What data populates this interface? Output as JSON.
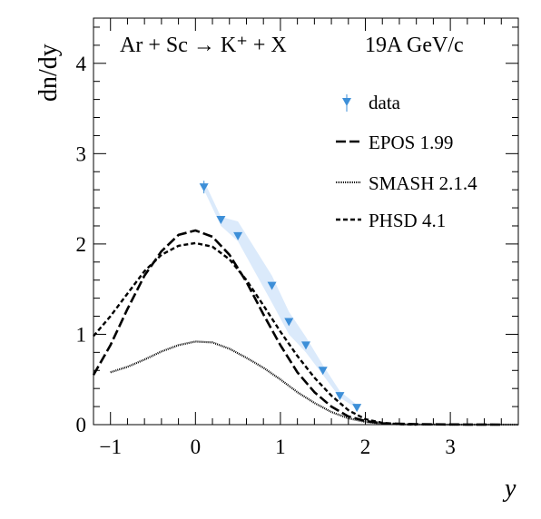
{
  "chart_data": {
    "type": "line",
    "title": "Ar + Sc → K⁺ + X",
    "subtitle": "19A GeV/c",
    "xlabel": "y",
    "ylabel": "dn/dy",
    "xlim": [
      -1.2,
      3.8
    ],
    "ylim": [
      0,
      4.5
    ],
    "xticks": [
      -1,
      0,
      1,
      2,
      3
    ],
    "yticks": [
      0,
      1,
      2,
      3,
      4
    ],
    "grid": false,
    "legend_position": "top-right",
    "legend": [
      {
        "label": "data",
        "style": "marker"
      },
      {
        "label": "EPOS 1.99",
        "style": "long-dash"
      },
      {
        "label": "SMASH 2.1.4",
        "style": "dotted"
      },
      {
        "label": "PHSD 4.1",
        "style": "dashed"
      }
    ],
    "data_points": {
      "name": "data",
      "color": "#3d8fd8",
      "x": [
        0.1,
        0.3,
        0.5,
        0.9,
        1.1,
        1.3,
        1.5,
        1.7,
        1.9
      ],
      "y": [
        2.63,
        2.27,
        2.09,
        1.54,
        1.14,
        0.88,
        0.6,
        0.32,
        0.19
      ],
      "err": [
        0.07,
        0.04,
        0.04,
        0.03,
        0.03,
        0.02,
        0.02,
        0.02,
        0.02
      ],
      "band_upper": [
        2.7,
        2.3,
        2.25,
        1.65,
        1.25,
        0.97,
        0.66,
        0.37,
        0.22
      ],
      "band_lower": [
        2.6,
        2.2,
        2.03,
        1.35,
        1.0,
        0.8,
        0.55,
        0.3,
        0.18
      ]
    },
    "series": [
      {
        "name": "EPOS 1.99",
        "style": "long-dash",
        "x": [
          -1.2,
          -1.0,
          -0.8,
          -0.6,
          -0.4,
          -0.2,
          0.0,
          0.2,
          0.4,
          0.6,
          0.8,
          1.0,
          1.2,
          1.4,
          1.6,
          1.8,
          2.0,
          2.2,
          2.4,
          2.6,
          2.8,
          3.2,
          3.6
        ],
        "y": [
          0.55,
          0.88,
          1.28,
          1.65,
          1.92,
          2.1,
          2.15,
          2.08,
          1.88,
          1.58,
          1.22,
          0.88,
          0.58,
          0.36,
          0.2,
          0.09,
          0.04,
          0.015,
          0.01,
          0.005,
          0.003,
          0.001,
          0.0
        ]
      },
      {
        "name": "SMASH 2.1.4",
        "style": "dotted",
        "x": [
          -1.0,
          -0.8,
          -0.6,
          -0.4,
          -0.2,
          0.0,
          0.2,
          0.4,
          0.6,
          0.8,
          1.0,
          1.2,
          1.4,
          1.6,
          1.8,
          2.0,
          2.2,
          2.4,
          2.6,
          3.0,
          3.4,
          3.8
        ],
        "y": [
          0.58,
          0.64,
          0.72,
          0.81,
          0.88,
          0.92,
          0.91,
          0.84,
          0.74,
          0.63,
          0.5,
          0.36,
          0.24,
          0.14,
          0.07,
          0.03,
          0.01,
          0.004,
          0.002,
          0.0,
          0.0,
          0.0
        ]
      },
      {
        "name": "PHSD 4.1",
        "style": "dashed",
        "x": [
          -1.2,
          -1.0,
          -0.8,
          -0.6,
          -0.4,
          -0.2,
          0.0,
          0.2,
          0.4,
          0.6,
          0.8,
          1.0,
          1.2,
          1.4,
          1.6,
          1.8,
          2.0,
          2.2,
          2.4,
          2.6
        ],
        "y": [
          0.98,
          1.2,
          1.45,
          1.7,
          1.88,
          1.98,
          2.01,
          1.97,
          1.83,
          1.6,
          1.32,
          1.03,
          0.76,
          0.52,
          0.32,
          0.16,
          0.06,
          0.02,
          0.005,
          0.0
        ]
      }
    ]
  }
}
